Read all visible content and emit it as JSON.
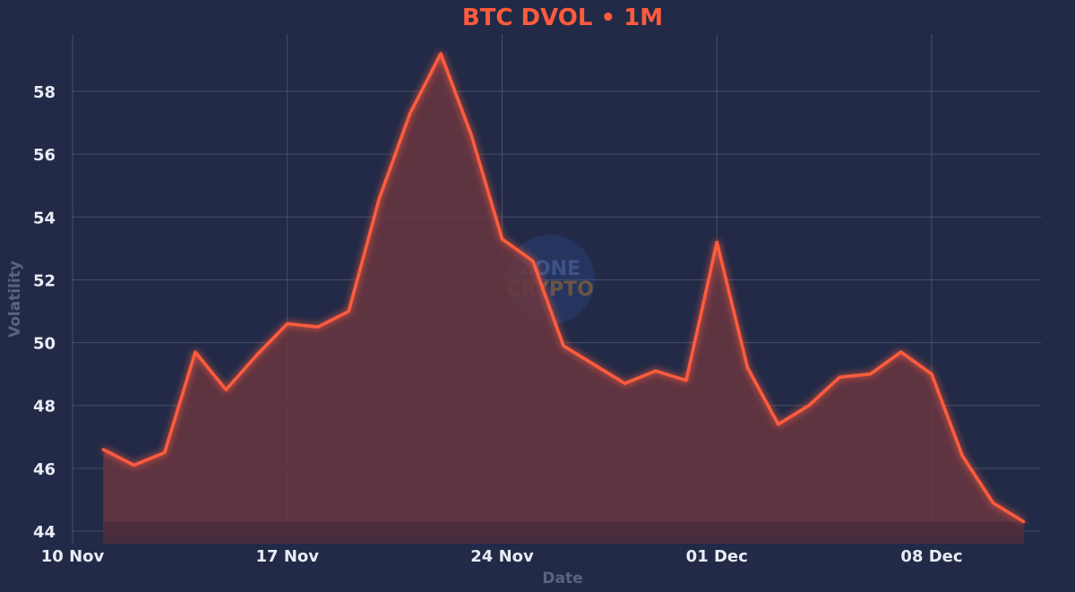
{
  "chart_data": {
    "type": "area",
    "title": "BTC DVOL • 1M",
    "xlabel": "Date",
    "ylabel": "Volatility",
    "x_ticks": [
      "10 Nov",
      "17 Nov",
      "24 Nov",
      "01 Dec",
      "08 Dec"
    ],
    "y_ticks": [
      "44",
      "46",
      "48",
      "50",
      "52",
      "54",
      "56",
      "58"
    ],
    "ylim": [
      43.75,
      59.4
    ],
    "grid": true,
    "legend": "none",
    "watermark": [
      "ZONE",
      "CRYPTO"
    ],
    "series": [
      {
        "x": [
          "2024-11-11",
          "2024-11-12",
          "2024-11-13",
          "2024-11-14",
          "2024-11-15",
          "2024-11-16",
          "2024-11-17",
          "2024-11-18",
          "2024-11-19",
          "2024-11-20",
          "2024-11-21",
          "2024-11-22",
          "2024-11-23",
          "2024-11-24",
          "2024-11-25",
          "2024-11-26",
          "2024-11-27",
          "2024-11-28",
          "2024-11-29",
          "2024-11-30",
          "2024-12-01",
          "2024-12-02",
          "2024-12-03",
          "2024-12-04",
          "2024-12-05",
          "2024-12-06",
          "2024-12-07",
          "2024-12-08",
          "2024-12-09",
          "2024-12-10",
          "2024-12-11"
        ],
        "values": [
          46.6,
          46.1,
          46.5,
          49.7,
          48.5,
          49.6,
          50.6,
          50.5,
          51.0,
          54.6,
          57.3,
          59.2,
          56.6,
          53.3,
          52.6,
          49.9,
          49.3,
          48.7,
          49.1,
          48.8,
          53.2,
          49.2,
          47.4,
          48.0,
          48.9,
          49.0,
          49.7,
          49.0,
          46.4,
          44.9,
          44.3
        ]
      }
    ],
    "colors": {
      "background": "#222a47",
      "line": "#ff5b3c",
      "fill": "#6a3641",
      "grid": "#474e68",
      "tick_text": "#e9ecf4",
      "axis_label": "#5c647d",
      "title": "#ff5b3c"
    }
  }
}
